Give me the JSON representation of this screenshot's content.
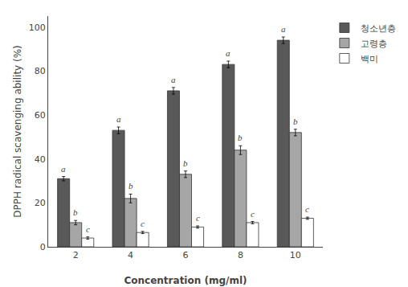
{
  "chart_data": {
    "type": "bar",
    "categories": [
      2,
      4,
      6,
      8,
      10
    ],
    "series": [
      {
        "name": "청소년층",
        "color": "#595959",
        "values": [
          31,
          53,
          71,
          83,
          94
        ],
        "errors": [
          1.0,
          1.5,
          1.5,
          1.5,
          1.5
        ],
        "labels": [
          "a",
          "a",
          "a",
          "a",
          "a"
        ]
      },
      {
        "name": "고령층",
        "color": "#a6a6a6",
        "values": [
          11,
          22,
          33,
          44,
          52
        ],
        "errors": [
          1.0,
          2.0,
          1.5,
          2.0,
          1.5
        ],
        "labels": [
          "b",
          "b",
          "b",
          "b",
          "b"
        ]
      },
      {
        "name": "백미",
        "color": "#ffffff",
        "values": [
          4,
          6.5,
          9,
          11,
          13
        ],
        "errors": [
          0.5,
          0.5,
          0.5,
          0.5,
          0.5
        ],
        "labels": [
          "c",
          "c",
          "c",
          "c",
          "c"
        ]
      }
    ],
    "xlabel": "Concentration (mg/ml)",
    "ylabel": "DPPH radical scavenging ability (%)",
    "ylim": [
      0,
      105
    ],
    "yticks": [
      0,
      20,
      40,
      60,
      80,
      100
    ],
    "grid": false,
    "legend": "right"
  }
}
